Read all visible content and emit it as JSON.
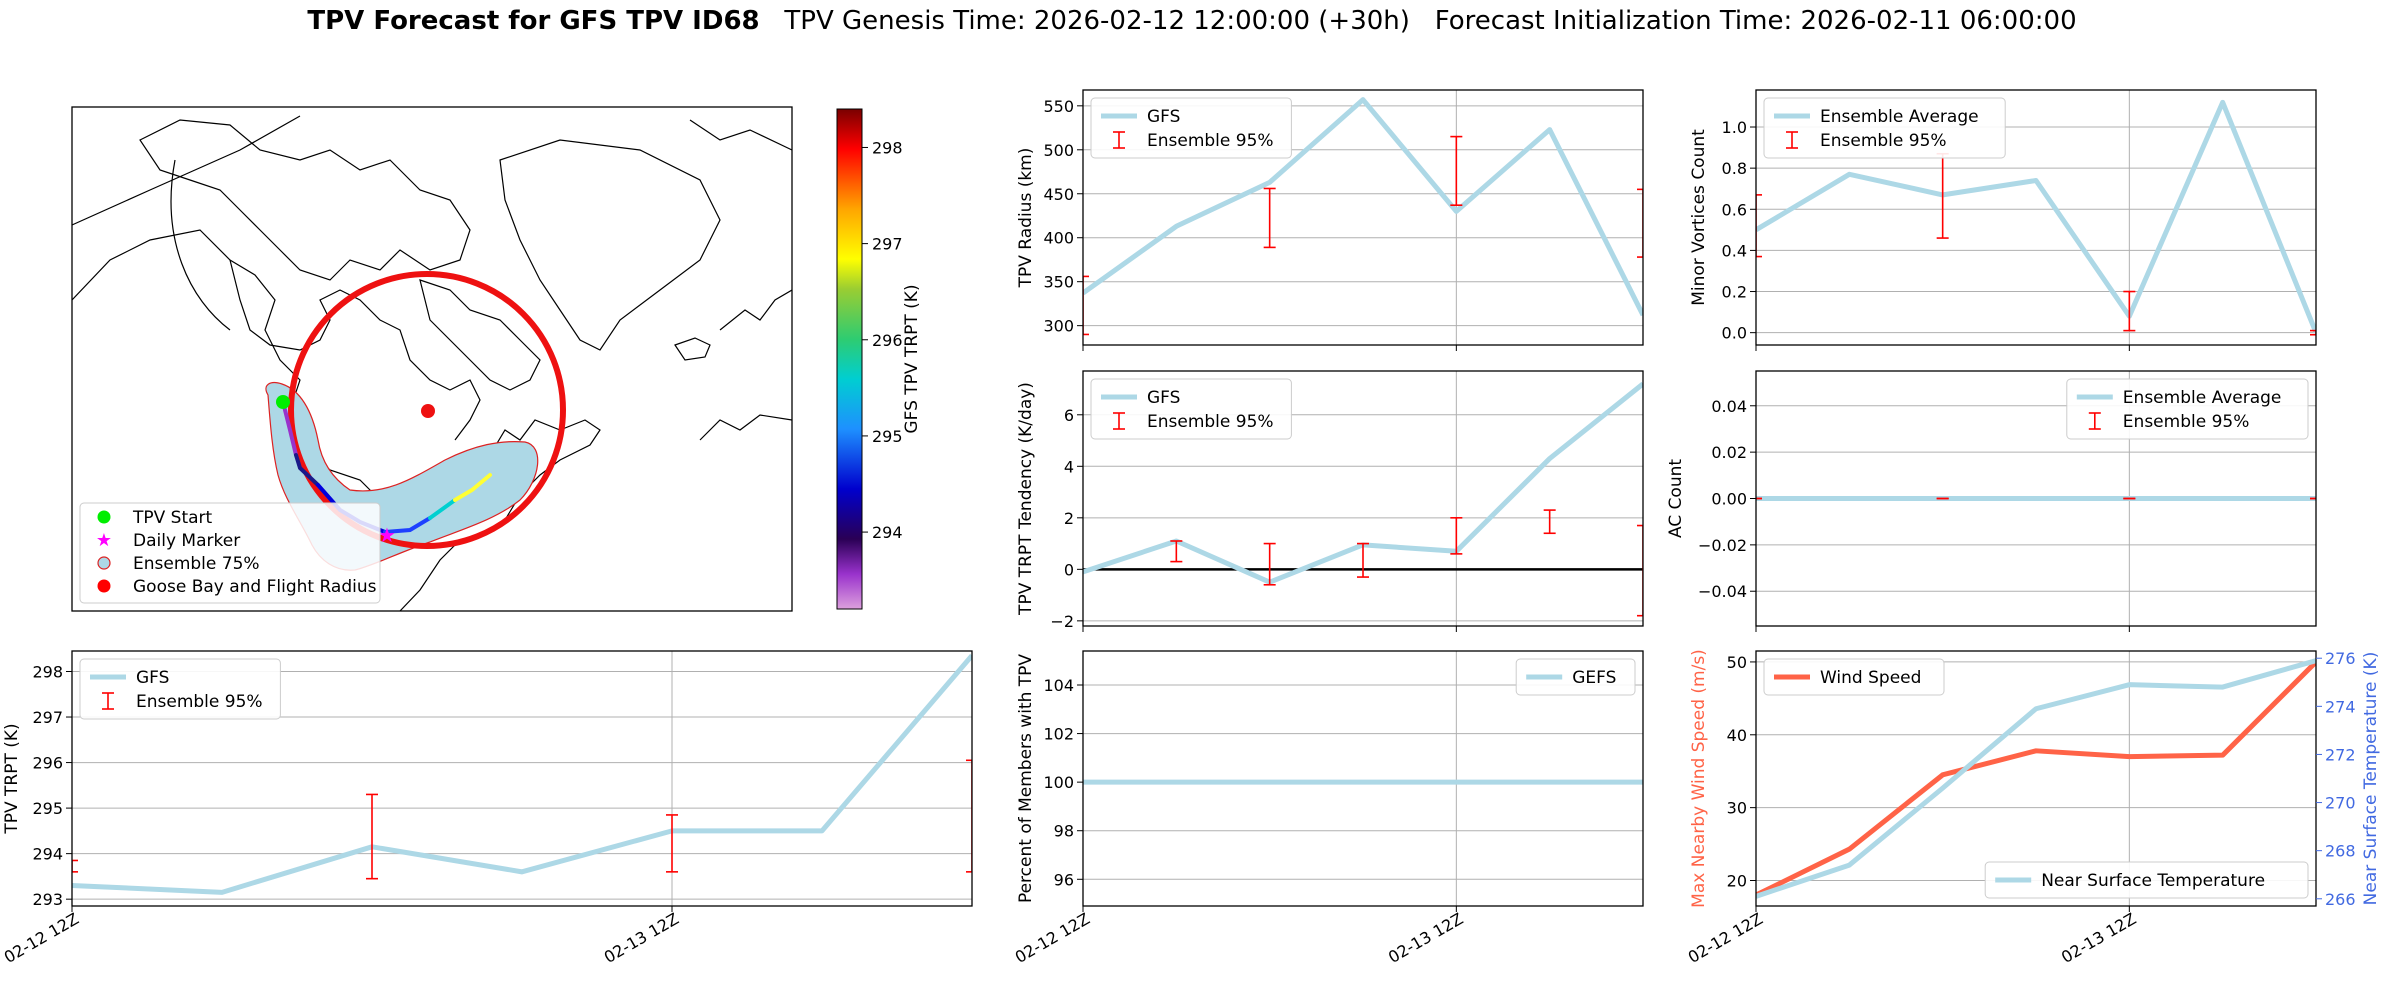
{
  "title": {
    "bold": "TPV Forecast for GFS TPV ID68",
    "genesis": "TPV Genesis Time: 2026-02-12 12:00:00 (+30h)",
    "init": "Forecast Initialization Time: 2026-02-11 06:00:00"
  },
  "colors": {
    "gfs": "#add8e6",
    "err": "#ff0000",
    "wind": "#ff6347",
    "temp_axis": "#4169e1",
    "wind_axis": "#ff6347",
    "circle": "#ee1111"
  },
  "map": {
    "colorbar_label": "GFS TPV TRPT (K)",
    "colorbar_ticks": [
      294,
      295,
      296,
      297,
      298
    ],
    "colorbar_range": [
      293.2,
      298.4
    ],
    "legend": [
      {
        "label": "TPV Start",
        "icon": "circle-marker",
        "color": "#00ee00"
      },
      {
        "label": "Daily Marker",
        "icon": "star-marker",
        "color": "#ff00ff"
      },
      {
        "label": "Ensemble 75%",
        "icon": "circle-outline-marker",
        "color": "#add8e6"
      },
      {
        "label": "Goose Bay and Flight Radius",
        "icon": "circle-marker",
        "color": "#ff0000"
      }
    ]
  },
  "chart_data": [
    {
      "id": "radius",
      "type": "line",
      "ylabel": "TPV Radius (km)",
      "ylim": [
        278,
        568
      ],
      "yticks": [
        300,
        350,
        400,
        450,
        500,
        550
      ],
      "x": [
        0,
        3,
        6,
        9,
        12,
        15,
        18
      ],
      "xlim": [
        0,
        18
      ],
      "xticks": [
        0,
        12
      ],
      "xticklabels": [
        "02-12 12Z",
        "02-13 12Z"
      ],
      "show_xticklabels": false,
      "series": [
        {
          "name": "GFS",
          "values": [
            337,
            413,
            463,
            557,
            430,
            523,
            312
          ]
        }
      ],
      "errorbars": [
        {
          "x": 0,
          "low": 290,
          "high": 356
        },
        {
          "x": 6,
          "low": 389,
          "high": 456
        },
        {
          "x": 12,
          "low": 437,
          "high": 515
        },
        {
          "x": 18,
          "low": 378,
          "high": 455
        }
      ],
      "legend": [
        "GFS",
        "Ensemble 95%"
      ],
      "legend_loc": "upper left",
      "vgrid": [
        12
      ]
    },
    {
      "id": "minor",
      "type": "line",
      "ylabel": "Minor Vortices Count",
      "ylim": [
        -0.06,
        1.18
      ],
      "yticks": [
        0.0,
        0.2,
        0.4,
        0.6,
        0.8,
        1.0
      ],
      "ytickfmt": 1,
      "x": [
        0,
        3,
        6,
        9,
        12,
        15,
        18
      ],
      "xlim": [
        0,
        18
      ],
      "xticks": [
        0,
        12
      ],
      "xticklabels": [
        "02-12 12Z",
        "02-13 12Z"
      ],
      "show_xticklabels": false,
      "series": [
        {
          "name": "Ensemble Average",
          "values": [
            0.5,
            0.77,
            0.67,
            0.74,
            0.08,
            1.12,
            0.0
          ]
        }
      ],
      "errorbars": [
        {
          "x": 0,
          "low": 0.37,
          "high": 0.67
        },
        {
          "x": 6,
          "low": 0.46,
          "high": 0.87
        },
        {
          "x": 12,
          "low": 0.01,
          "high": 0.2
        },
        {
          "x": 18,
          "low": -0.01,
          "high": 0.01
        }
      ],
      "legend": [
        "Ensemble Average",
        "Ensemble 95%"
      ],
      "legend_loc": "upper left",
      "vgrid": [
        12
      ]
    },
    {
      "id": "tendency",
      "type": "line",
      "ylabel": "TPV TRPT Tendency (K/day)",
      "ylim": [
        -2.2,
        7.7
      ],
      "yticks": [
        -2,
        0,
        2,
        4,
        6
      ],
      "x": [
        0,
        3,
        6,
        9,
        12,
        15,
        18
      ],
      "xlim": [
        0,
        18
      ],
      "xticks": [
        0,
        12
      ],
      "xticklabels": [
        "02-12 12Z",
        "02-13 12Z"
      ],
      "show_xticklabels": false,
      "series": [
        {
          "name": "GFS",
          "values": [
            -0.1,
            1.1,
            -0.5,
            0.95,
            0.7,
            4.3,
            7.2
          ]
        }
      ],
      "errorbars": [
        {
          "x": 3,
          "low": 0.3,
          "high": 1.1
        },
        {
          "x": 6,
          "low": -0.6,
          "high": 1.0
        },
        {
          "x": 9,
          "low": -0.3,
          "high": 1.0
        },
        {
          "x": 12,
          "low": 0.6,
          "high": 2.0
        },
        {
          "x": 15,
          "low": 1.4,
          "high": 2.3
        },
        {
          "x": 18,
          "low": -1.8,
          "high": 1.7
        }
      ],
      "legend": [
        "GFS",
        "Ensemble 95%"
      ],
      "legend_loc": "upper left",
      "hline": 0,
      "vgrid": [
        12
      ]
    },
    {
      "id": "ac",
      "type": "line",
      "ylabel": "AC Count",
      "ylim": [
        -0.055,
        0.055
      ],
      "yticks": [
        -0.04,
        -0.02,
        0.0,
        0.02,
        0.04
      ],
      "ytickfmt": 2,
      "x": [
        0,
        3,
        6,
        9,
        12,
        15,
        18
      ],
      "xlim": [
        0,
        18
      ],
      "xticks": [
        0,
        12
      ],
      "xticklabels": [
        "02-12 12Z",
        "02-13 12Z"
      ],
      "show_xticklabels": false,
      "series": [
        {
          "name": "Ensemble Average",
          "values": [
            0,
            0,
            0,
            0,
            0,
            0,
            0
          ]
        }
      ],
      "errorbars": [
        {
          "x": 0,
          "low": 0,
          "high": 0
        },
        {
          "x": 6,
          "low": 0,
          "high": 0
        },
        {
          "x": 12,
          "low": 0,
          "high": 0
        },
        {
          "x": 18,
          "low": 0,
          "high": 0
        }
      ],
      "legend": [
        "Ensemble Average",
        "Ensemble 95%"
      ],
      "legend_loc": "upper right",
      "vgrid": [
        12
      ]
    },
    {
      "id": "trpt",
      "type": "line",
      "ylabel": "TPV TRPT (K)",
      "ylim": [
        292.85,
        298.45
      ],
      "yticks": [
        293,
        294,
        295,
        296,
        297,
        298
      ],
      "x": [
        0,
        3,
        6,
        9,
        12,
        15,
        18
      ],
      "xlim": [
        0,
        18
      ],
      "xticks": [
        0,
        12
      ],
      "xticklabels": [
        "02-12 12Z",
        "02-13 12Z"
      ],
      "show_xticklabels": true,
      "series": [
        {
          "name": "GFS",
          "values": [
            293.3,
            293.15,
            294.15,
            293.6,
            294.5,
            294.5,
            298.35
          ]
        }
      ],
      "errorbars": [
        {
          "x": 0,
          "low": 293.6,
          "high": 293.85
        },
        {
          "x": 6,
          "low": 293.45,
          "high": 295.3
        },
        {
          "x": 12,
          "low": 293.6,
          "high": 294.85
        },
        {
          "x": 18,
          "low": 293.6,
          "high": 296.05
        }
      ],
      "legend": [
        "GFS",
        "Ensemble 95%"
      ],
      "legend_loc": "upper left",
      "vgrid": [
        12
      ]
    },
    {
      "id": "percent",
      "type": "line",
      "ylabel": "Percent of Members with TPV",
      "ylim": [
        94.9,
        105.4
      ],
      "yticks": [
        96,
        98,
        100,
        102,
        104
      ],
      "x": [
        0,
        3,
        6,
        9,
        12,
        15,
        18
      ],
      "xlim": [
        0,
        18
      ],
      "xticks": [
        0,
        12
      ],
      "xticklabels": [
        "02-12 12Z",
        "02-13 12Z"
      ],
      "show_xticklabels": true,
      "series": [
        {
          "name": "GEFS",
          "values": [
            100,
            100,
            100,
            100,
            100,
            100,
            100
          ]
        }
      ],
      "legend": [
        "GEFS"
      ],
      "legend_loc": "upper right",
      "vgrid": [
        12
      ]
    },
    {
      "id": "wind",
      "type": "line",
      "ylabel": "Max Nearby Wind Speed (m/s)",
      "ylim": [
        16.5,
        51.5
      ],
      "yticks": [
        20,
        30,
        40,
        50
      ],
      "ylabel2": "Near Surface Temperature (K)",
      "ylim2": [
        265.7,
        276.3
      ],
      "yticks2": [
        266,
        268,
        270,
        272,
        274,
        276
      ],
      "x": [
        0,
        3,
        6,
        9,
        12,
        15,
        18
      ],
      "xlim": [
        0,
        18
      ],
      "xticks": [
        0,
        12
      ],
      "xticklabels": [
        "02-12 12Z",
        "02-13 12Z"
      ],
      "show_xticklabels": true,
      "series": [
        {
          "name": "Wind Speed",
          "axis": "left",
          "values": [
            18,
            24.3,
            34.5,
            37.8,
            37,
            37.2,
            50
          ]
        },
        {
          "name": "Near Surface Temperature",
          "axis": "right",
          "values": [
            266.1,
            267.4,
            270.6,
            273.9,
            274.9,
            274.8,
            275.9
          ]
        }
      ],
      "legend": [
        "Wind Speed"
      ],
      "legend2": [
        "Near Surface Temperature"
      ],
      "vgrid": [
        12
      ]
    }
  ]
}
